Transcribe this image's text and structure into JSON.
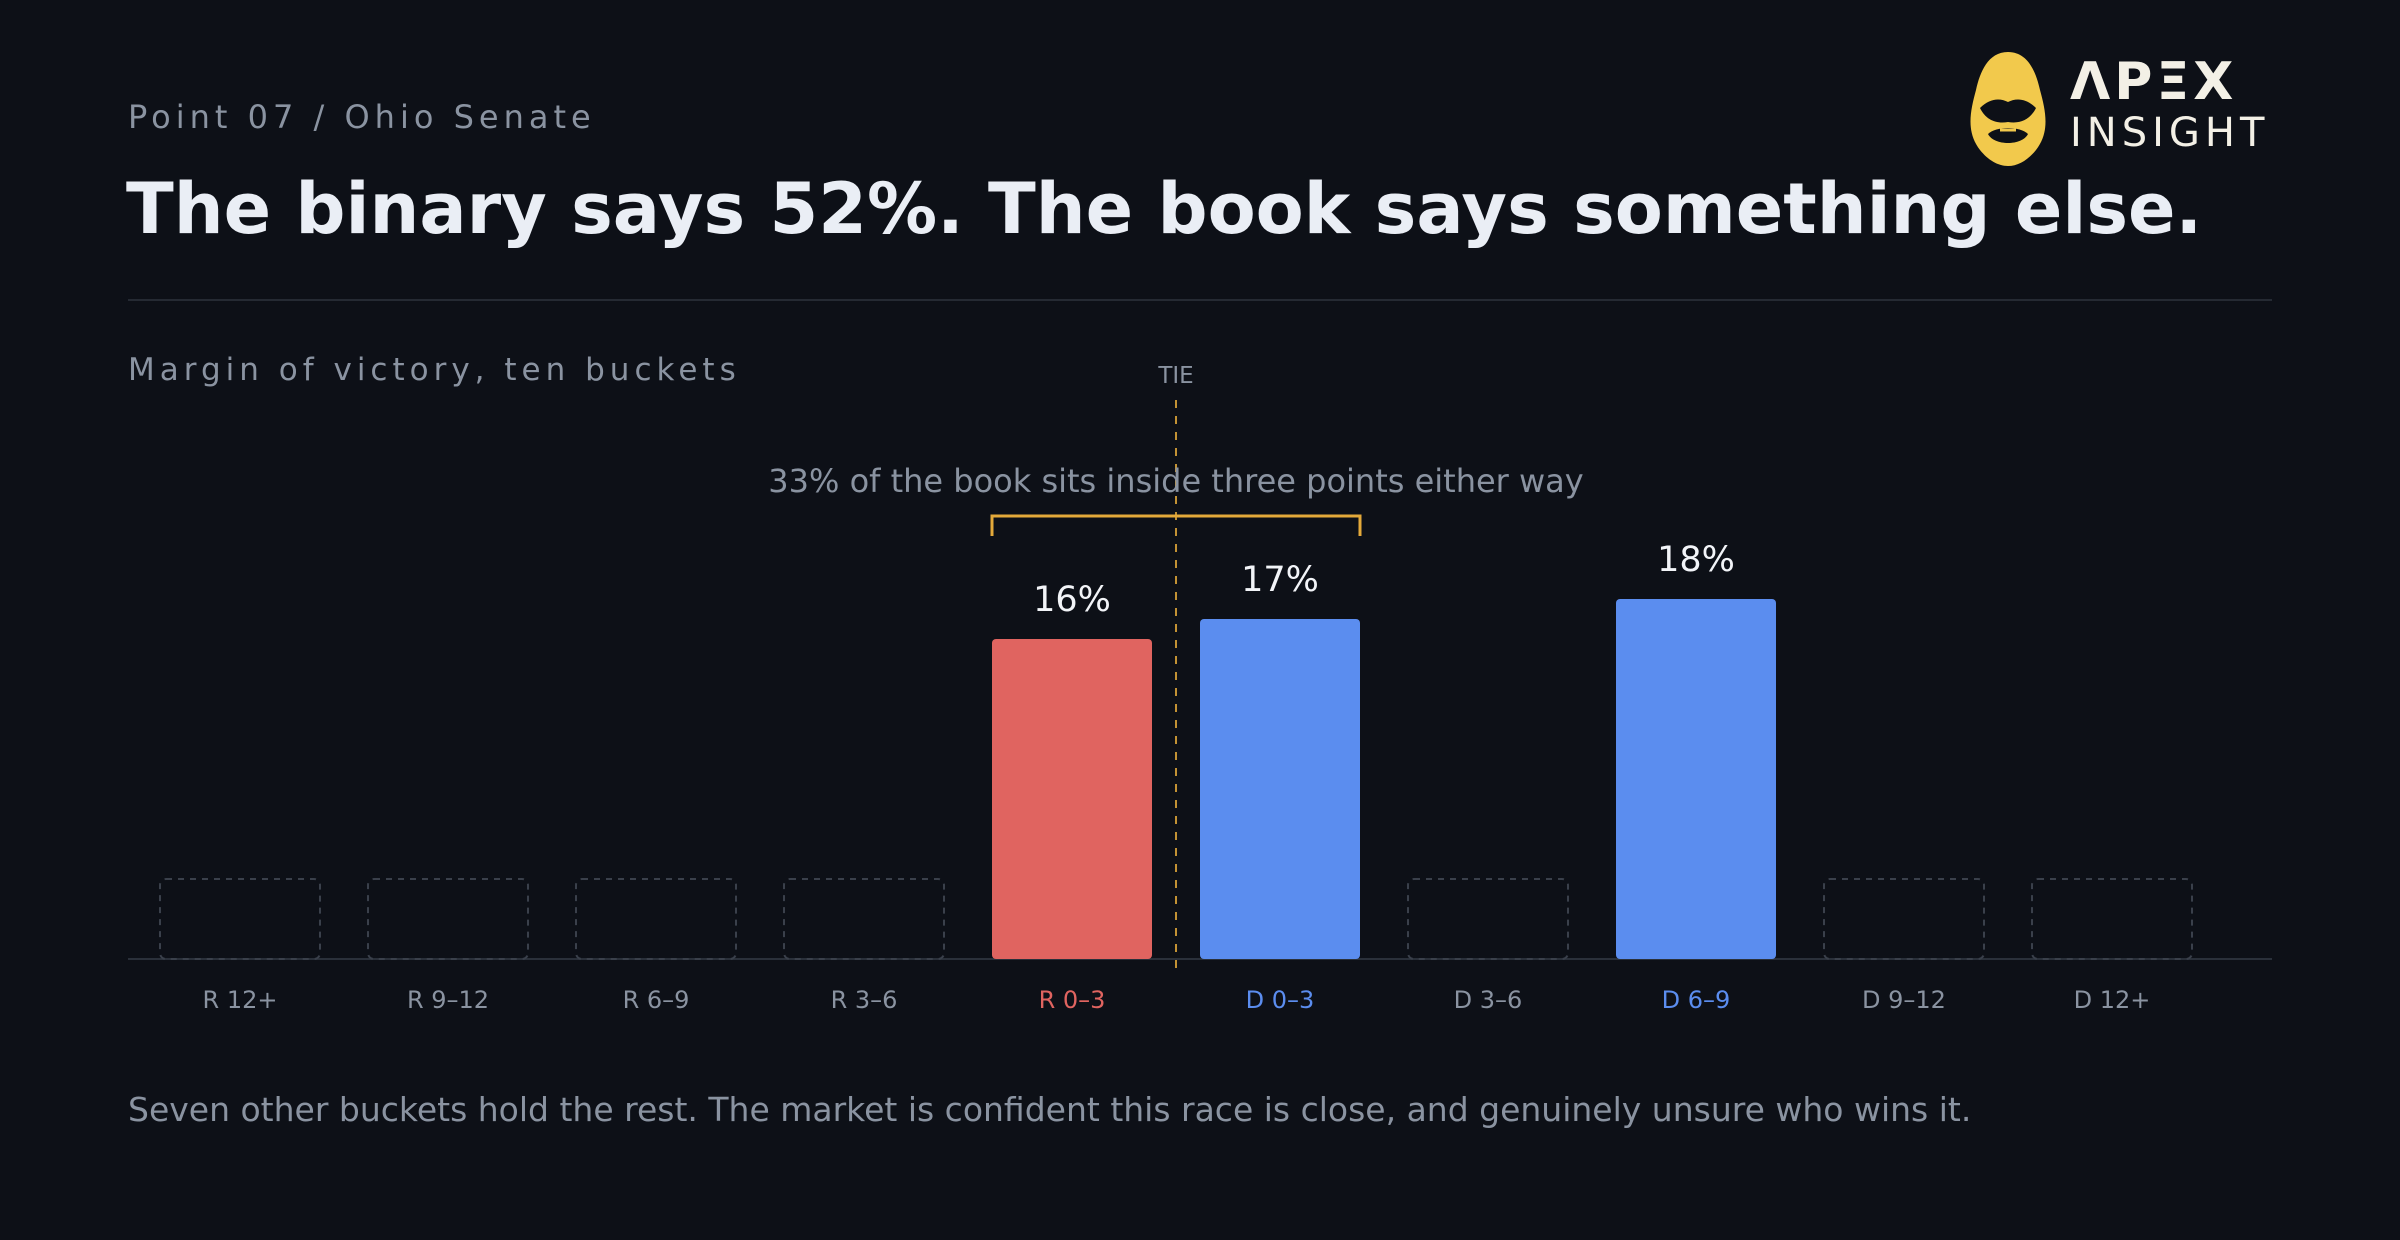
{
  "header": {
    "kicker": "Point 07 / Ohio Senate",
    "title": "The binary says 52%. The book says something else."
  },
  "logo": {
    "line1": "ΛPΞX",
    "line2": "INSIGHT",
    "icon": "mask-shield-icon"
  },
  "chart_label": "Margin of victory, ten buckets",
  "footnote": "Seven other buckets hold the rest. The market is confident this race is close, and genuinely unsure who wins it.",
  "colors": {
    "background": "#0d1017",
    "republican": "#e06460",
    "democrat": "#5b8def",
    "accent": "#e3a93a",
    "muted": "#8a93a1",
    "empty_outline": "#3a404b"
  },
  "chart_data": {
    "type": "bar",
    "title": "Margin of victory, ten buckets",
    "categories": [
      "R 12+",
      "R 9–12",
      "R 6–9",
      "R 3–6",
      "R 0–3",
      "D 0–3",
      "D 3–6",
      "D 6–9",
      "D 9–12",
      "D 12+"
    ],
    "values": [
      null,
      null,
      null,
      null,
      16,
      17,
      null,
      18,
      null,
      null
    ],
    "data_labels": [
      "",
      "",
      "",
      "",
      "16%",
      "17%",
      "",
      "18%",
      "",
      ""
    ],
    "party": [
      "R",
      "R",
      "R",
      "R",
      "R",
      "D",
      "D",
      "D",
      "D",
      "D"
    ],
    "ylim": [
      0,
      22
    ],
    "grid": false,
    "legend": "none",
    "reference_line": {
      "between": [
        "R 0–3",
        "D 0–3"
      ],
      "label": "TIE"
    },
    "annotation": {
      "text": "33% of the book sits inside three points either way",
      "spans": [
        "R 0–3",
        "D 0–3"
      ]
    }
  }
}
